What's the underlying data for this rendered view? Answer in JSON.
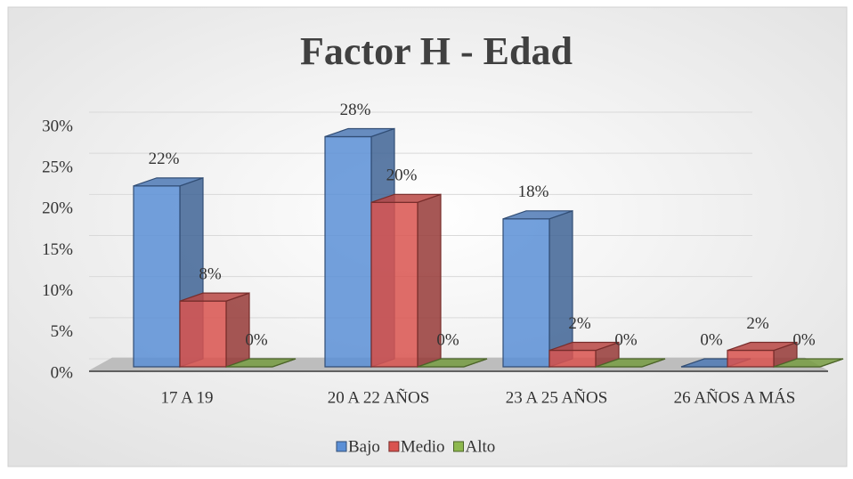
{
  "chart_data": {
    "type": "bar3d",
    "title": "Factor H - Edad",
    "categories": [
      "17 A 19",
      "20 A  22 AÑOS",
      "23 A 25 AÑOS",
      "26 AÑOS A MÁS"
    ],
    "series": [
      {
        "name": "Bajo",
        "color": "#5b8fd6",
        "values": [
          22,
          28,
          18,
          0
        ],
        "value_labels": [
          "22%",
          "28%",
          "18%",
          "0%"
        ]
      },
      {
        "name": "Medio",
        "color": "#d9534f",
        "values": [
          8,
          20,
          2,
          2
        ],
        "value_labels": [
          "8%",
          "20%",
          "2%",
          "2%"
        ]
      },
      {
        "name": "Alto",
        "color": "#8db84e",
        "values": [
          0,
          0,
          0,
          0
        ],
        "value_labels": [
          "0%",
          "0%",
          "0%",
          "0%"
        ]
      }
    ],
    "ylim": [
      0,
      30
    ],
    "yticks": [
      {
        "value": 0,
        "label": "0%"
      },
      {
        "value": 5,
        "label": "5%"
      },
      {
        "value": 10,
        "label": "10%"
      },
      {
        "value": 15,
        "label": "15%"
      },
      {
        "value": 20,
        "label": "20%"
      },
      {
        "value": 25,
        "label": "25%"
      },
      {
        "value": 30,
        "label": "30%"
      }
    ],
    "grid": true,
    "legend": "bottom"
  }
}
